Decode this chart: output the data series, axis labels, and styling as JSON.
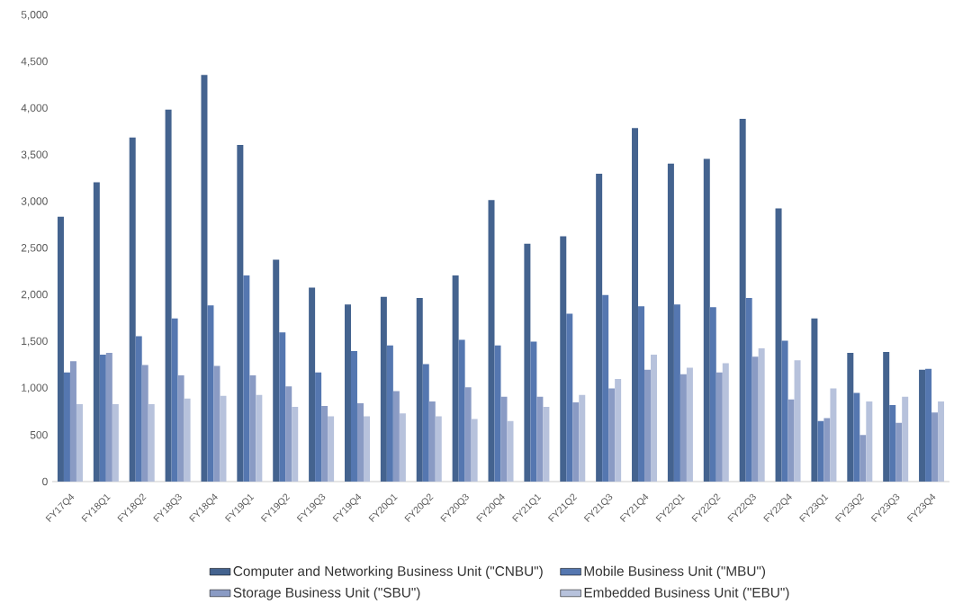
{
  "chart_data": {
    "type": "bar",
    "categories": [
      "FY17Q4",
      "FY18Q1",
      "FY18Q2",
      "FY18Q3",
      "FY18Q4",
      "FY19Q1",
      "FY19Q2",
      "FY19Q3",
      "FY19Q4",
      "FY20Q1",
      "FY20Q2",
      "FY20Q3",
      "FY20Q4",
      "FY21Q1",
      "FY21Q2",
      "FY21Q3",
      "FY21Q4",
      "FY22Q1",
      "FY22Q2",
      "FY22Q3",
      "FY22Q4",
      "FY23Q1",
      "FY23Q2",
      "FY23Q3",
      "FY23Q4"
    ],
    "series": [
      {
        "name": "Computer and Networking Business Unit (\"CNBU\")",
        "color": "#44638f",
        "values": [
          2840,
          3210,
          3690,
          3990,
          4360,
          3610,
          2380,
          2080,
          1900,
          1980,
          1970,
          2210,
          3020,
          2550,
          2630,
          3300,
          3790,
          3410,
          3460,
          3890,
          2930,
          1750,
          1380,
          1390,
          1200
        ]
      },
      {
        "name": "Mobile Business Unit (\"MBU\")",
        "color": "#5577b0",
        "values": [
          1170,
          1360,
          1560,
          1750,
          1890,
          2210,
          1600,
          1170,
          1400,
          1460,
          1260,
          1520,
          1460,
          1500,
          1800,
          2000,
          1880,
          1900,
          1870,
          1970,
          1510,
          650,
          950,
          820,
          1210
        ]
      },
      {
        "name": "Storage Business Unit (\"SBU\")",
        "color": "#8a9bc4",
        "values": [
          1290,
          1380,
          1250,
          1140,
          1240,
          1140,
          1020,
          810,
          840,
          970,
          860,
          1010,
          910,
          910,
          850,
          1000,
          1200,
          1150,
          1170,
          1340,
          880,
          680,
          500,
          630,
          740
        ]
      },
      {
        "name": "Embedded Business Unit (\"EBU\")",
        "color": "#b7c2dc",
        "values": [
          830,
          830,
          830,
          890,
          920,
          930,
          800,
          700,
          700,
          730,
          700,
          670,
          650,
          800,
          930,
          1100,
          1360,
          1220,
          1270,
          1430,
          1300,
          1000,
          860,
          910,
          860
        ]
      }
    ],
    "ylim": [
      0,
      5000
    ],
    "yticks": [
      0,
      500,
      {
        "value": 1000,
        "label": "1,000"
      },
      {
        "value": 1500,
        "label": "1,500"
      },
      {
        "value": 2000,
        "label": "2,000"
      },
      {
        "value": 2500,
        "label": "2,500"
      },
      {
        "value": 3000,
        "label": "3,000"
      },
      {
        "value": 3500,
        "label": "3,500"
      },
      {
        "value": 4000,
        "label": "4,000"
      },
      {
        "value": 4500,
        "label": "4,500"
      },
      {
        "value": 5000,
        "label": "5,000"
      }
    ],
    "grid": false,
    "legend": "bottom"
  }
}
